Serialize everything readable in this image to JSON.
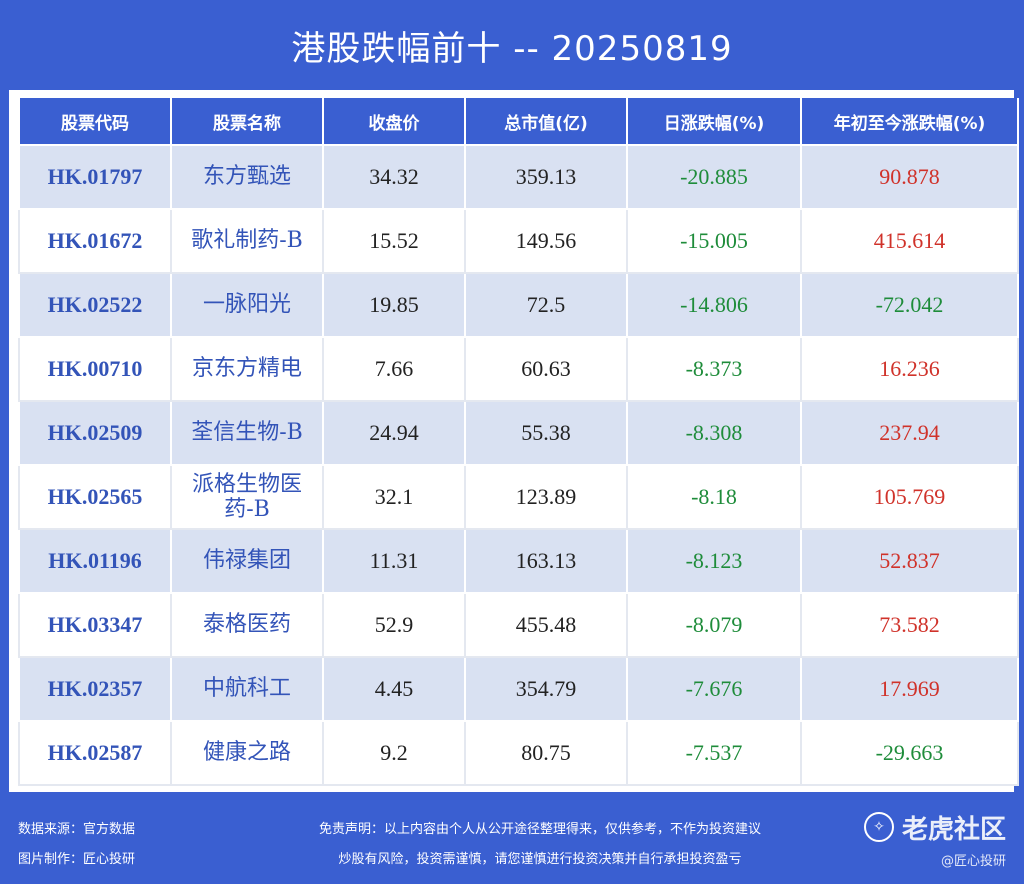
{
  "title": "港股跌幅前十 -- 20250819",
  "headers": [
    "股票代码",
    "股票名称",
    "收盘价",
    "总市值(亿)",
    "日涨跌幅(%)",
    "年初至今涨跌幅(%)"
  ],
  "rows": [
    {
      "code": "HK.01797",
      "name": "东方甄选",
      "close": "34.32",
      "mktcap": "359.13",
      "day": "-20.885",
      "ytd": "90.878"
    },
    {
      "code": "HK.01672",
      "name": "歌礼制药-B",
      "close": "15.52",
      "mktcap": "149.56",
      "day": "-15.005",
      "ytd": "415.614"
    },
    {
      "code": "HK.02522",
      "name": "一脉阳光",
      "close": "19.85",
      "mktcap": "72.5",
      "day": "-14.806",
      "ytd": "-72.042"
    },
    {
      "code": "HK.00710",
      "name": "京东方精电",
      "close": "7.66",
      "mktcap": "60.63",
      "day": "-8.373",
      "ytd": "16.236"
    },
    {
      "code": "HK.02509",
      "name": "荃信生物-B",
      "close": "24.94",
      "mktcap": "55.38",
      "day": "-8.308",
      "ytd": "237.94"
    },
    {
      "code": "HK.02565",
      "name": "派格生物医药-B",
      "close": "32.1",
      "mktcap": "123.89",
      "day": "-8.18",
      "ytd": "105.769"
    },
    {
      "code": "HK.01196",
      "name": "伟禄集团",
      "close": "11.31",
      "mktcap": "163.13",
      "day": "-8.123",
      "ytd": "52.837"
    },
    {
      "code": "HK.03347",
      "name": "泰格医药",
      "close": "52.9",
      "mktcap": "455.48",
      "day": "-8.079",
      "ytd": "73.582"
    },
    {
      "code": "HK.02357",
      "name": "中航科工",
      "close": "4.45",
      "mktcap": "354.79",
      "day": "-7.676",
      "ytd": "17.969"
    },
    {
      "code": "HK.02587",
      "name": "健康之路",
      "close": "9.2",
      "mktcap": "80.75",
      "day": "-7.537",
      "ytd": "-29.663"
    }
  ],
  "footer": {
    "source": "数据来源：官方数据",
    "maker": "图片制作：匠心投研",
    "disclaimer1": "免责声明：以上内容由个人从公开途径整理得来，仅供参考，不作为投资建议",
    "disclaimer2": "炒股有风险，投资需谨慎，请您谨慎进行投资决策并自行承担投资盈亏",
    "logo": "老虎社区",
    "watermark": "@匠心投研"
  },
  "colors": {
    "background": "#3a5fd1",
    "negative": "#1e8c3a",
    "positive": "#d0322a",
    "code": "#3354b8",
    "row_alt": "#d9e1f2"
  }
}
